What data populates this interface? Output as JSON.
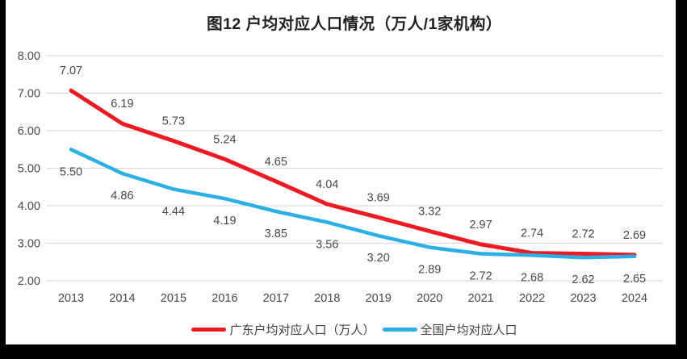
{
  "title": "图12 户均对应人口情况（万人/1家机构）",
  "chart_data": {
    "type": "line",
    "title": "图12 户均对应人口情况（万人/1家机构）",
    "categories": [
      "2013",
      "2014",
      "2015",
      "2016",
      "2017",
      "2018",
      "2019",
      "2020",
      "2021",
      "2022",
      "2023",
      "2024"
    ],
    "series": [
      {
        "name": "广东户均对应人口（万人）",
        "color": "#EC1B23",
        "label_position": "above",
        "values": [
          7.07,
          6.19,
          5.73,
          5.24,
          4.65,
          4.04,
          3.69,
          3.32,
          2.97,
          2.74,
          2.72,
          2.69
        ]
      },
      {
        "name": "全国户均对应人口",
        "color": "#2BAFE4",
        "label_position": "below",
        "values": [
          5.5,
          4.86,
          4.44,
          4.19,
          3.85,
          3.56,
          3.2,
          2.89,
          2.72,
          2.68,
          2.62,
          2.65
        ]
      }
    ],
    "xlabel": "",
    "ylabel": "",
    "ylim": [
      2.0,
      8.0
    ],
    "yticks": [
      2,
      3,
      4,
      5,
      6,
      7,
      8
    ],
    "ytick_labels": [
      "2.00",
      "3.00",
      "4.00",
      "5.00",
      "6.00",
      "7.00",
      "8.00"
    ],
    "grid": true,
    "legend_position": "bottom",
    "colors": {
      "gridline": "#D9D9D9",
      "axis_text": "#474747",
      "data_label_text": "#474747",
      "title_text": "#1F1F1F",
      "background": "#FFFFFF",
      "screen_edge": "#000000"
    }
  }
}
